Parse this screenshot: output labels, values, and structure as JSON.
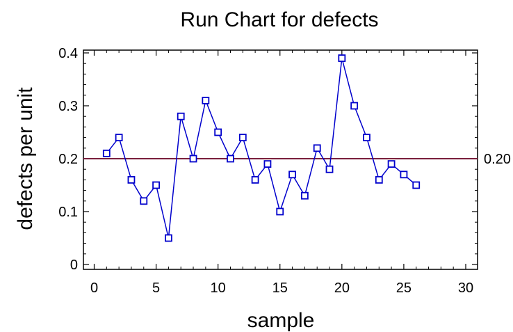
{
  "chart_data": {
    "type": "line",
    "title": "Run Chart for defects",
    "xlabel": "sample",
    "ylabel": "defects per unit",
    "xlim": [
      0,
      30
    ],
    "ylim": [
      0,
      0.4
    ],
    "x_ticks": [
      "0",
      "5",
      "10",
      "15",
      "20",
      "25",
      "30"
    ],
    "y_ticks": [
      "0",
      "0.1",
      "0.2",
      "0.3",
      "0.4"
    ],
    "grid": false,
    "center_line": {
      "value": 0.2,
      "label": "0.20",
      "color": "#7a1f3d"
    },
    "series": [
      {
        "color": "#0000cc",
        "marker": "square",
        "x": [
          1,
          2,
          3,
          4,
          5,
          6,
          7,
          8,
          9,
          10,
          11,
          12,
          13,
          14,
          15,
          16,
          17,
          18,
          19,
          20,
          21,
          22,
          23,
          24,
          25,
          26
        ],
        "values": [
          0.21,
          0.24,
          0.16,
          0.12,
          0.15,
          0.05,
          0.28,
          0.2,
          0.31,
          0.25,
          0.2,
          0.24,
          0.16,
          0.19,
          0.1,
          0.17,
          0.13,
          0.22,
          0.18,
          0.39,
          0.3,
          0.24,
          0.16,
          0.19,
          0.17,
          0.15
        ]
      }
    ]
  }
}
